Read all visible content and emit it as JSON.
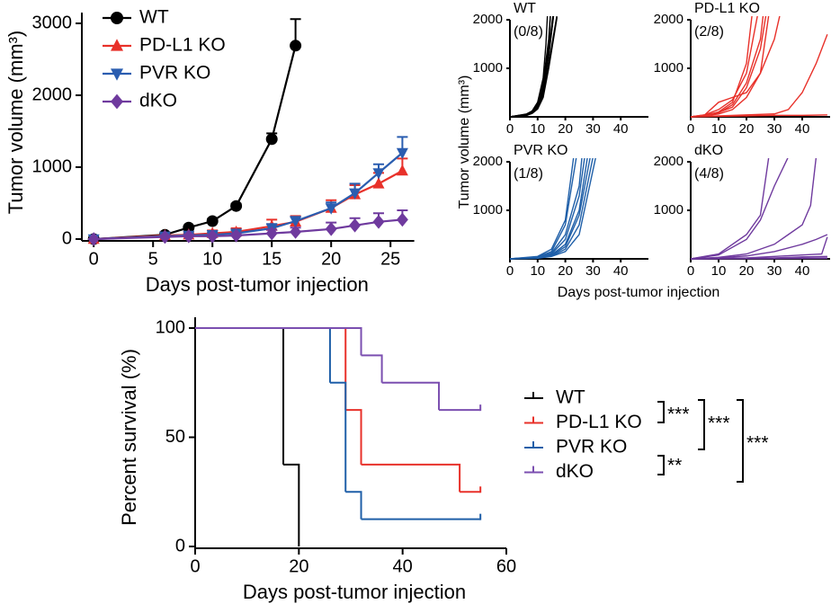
{
  "chart_data": [
    {
      "type": "line",
      "xlabel": "Days post-tumor injection",
      "ylabel": "Tumor volume (mm³)",
      "xlim": [
        -1,
        27
      ],
      "ylim": [
        0,
        3000
      ],
      "xticks": [
        0,
        5,
        10,
        15,
        20,
        25
      ],
      "yticks": [
        0,
        1000,
        2000,
        3000
      ],
      "legend": "upper left",
      "x": [
        0,
        6,
        8,
        10,
        12,
        15,
        17,
        20,
        22,
        24,
        26
      ],
      "series": [
        {
          "name": "WT",
          "color": "#000000",
          "marker": "circle",
          "values": [
            0,
            60,
            160,
            250,
            460,
            1390,
            2690,
            null,
            null,
            null,
            null
          ],
          "errors": [
            0,
            20,
            20,
            30,
            30,
            80,
            370,
            null,
            null,
            null,
            null
          ]
        },
        {
          "name": "PD-L1 KO",
          "color": "#e8312a",
          "marker": "triangle-up",
          "values": [
            0,
            50,
            60,
            80,
            100,
            180,
            240,
            430,
            620,
            770,
            950
          ],
          "errors": [
            0,
            20,
            30,
            40,
            50,
            90,
            80,
            110,
            130,
            150,
            170
          ]
        },
        {
          "name": "PVR KO",
          "color": "#2a5db0",
          "marker": "triangle-down",
          "values": [
            0,
            40,
            50,
            60,
            80,
            150,
            250,
            430,
            640,
            920,
            1200
          ],
          "errors": [
            0,
            20,
            20,
            30,
            40,
            60,
            60,
            80,
            130,
            120,
            220
          ]
        },
        {
          "name": "dKO",
          "color": "#6f3a9e",
          "marker": "diamond",
          "values": [
            0,
            30,
            40,
            40,
            50,
            80,
            100,
            140,
            190,
            240,
            270
          ],
          "errors": [
            0,
            20,
            20,
            20,
            30,
            50,
            60,
            90,
            100,
            120,
            130
          ]
        }
      ]
    },
    {
      "type": "line",
      "title": "WT",
      "title_color": "#000000",
      "annotation": "(0/8)",
      "color": "#000000",
      "xlim": [
        0,
        50
      ],
      "ylim": [
        0,
        2000
      ],
      "xticks": [
        0,
        10,
        20,
        30,
        40
      ],
      "yticks": [
        1000,
        2000
      ],
      "series": [
        {
          "x": [
            0,
            6,
            8,
            10,
            12,
            14,
            16
          ],
          "values": [
            0,
            40,
            90,
            200,
            500,
            1300,
            2200
          ]
        },
        {
          "x": [
            0,
            6,
            8,
            10,
            12,
            14,
            15
          ],
          "values": [
            0,
            50,
            100,
            250,
            700,
            1600,
            2400
          ]
        },
        {
          "x": [
            0,
            6,
            8,
            10,
            12,
            14,
            17
          ],
          "values": [
            0,
            30,
            80,
            180,
            450,
            1100,
            2100
          ]
        },
        {
          "x": [
            0,
            6,
            8,
            10,
            12,
            13,
            14
          ],
          "values": [
            0,
            60,
            120,
            300,
            800,
            1500,
            2600
          ]
        },
        {
          "x": [
            0,
            6,
            8,
            10,
            12,
            14,
            16
          ],
          "values": [
            0,
            40,
            90,
            220,
            600,
            1400,
            2300
          ]
        },
        {
          "x": [
            0,
            6,
            8,
            10,
            12,
            14,
            15
          ],
          "values": [
            0,
            50,
            110,
            260,
            650,
            1500,
            2500
          ]
        },
        {
          "x": [
            0,
            6,
            8,
            10,
            12,
            14,
            17
          ],
          "values": [
            0,
            30,
            70,
            160,
            400,
            1000,
            2050
          ]
        },
        {
          "x": [
            0,
            6,
            8,
            10,
            12,
            14,
            16
          ],
          "values": [
            0,
            45,
            100,
            240,
            550,
            1250,
            2200
          ]
        }
      ]
    },
    {
      "type": "line",
      "title": "PD-L1 KO",
      "title_color": "#e8312a",
      "annotation": "(2/8)",
      "color": "#e8312a",
      "xlim": [
        0,
        50
      ],
      "ylim": [
        0,
        2000
      ],
      "xticks": [
        0,
        10,
        20,
        30,
        40
      ],
      "yticks": [
        1000,
        2000
      ],
      "series": [
        {
          "x": [
            0,
            5,
            10,
            15,
            20,
            22
          ],
          "values": [
            0,
            30,
            100,
            300,
            1100,
            2100
          ]
        },
        {
          "x": [
            0,
            5,
            10,
            15,
            20,
            24
          ],
          "values": [
            0,
            40,
            150,
            350,
            900,
            2100
          ]
        },
        {
          "x": [
            0,
            5,
            10,
            15,
            20,
            25,
            26
          ],
          "values": [
            0,
            20,
            80,
            250,
            700,
            1600,
            2100
          ]
        },
        {
          "x": [
            0,
            5,
            10,
            15,
            20,
            25,
            27
          ],
          "values": [
            0,
            30,
            90,
            200,
            600,
            1400,
            2100
          ]
        },
        {
          "x": [
            0,
            5,
            10,
            15,
            20,
            25,
            30,
            32
          ],
          "values": [
            0,
            20,
            60,
            150,
            400,
            900,
            1600,
            2100
          ]
        },
        {
          "x": [
            0,
            5,
            10,
            15,
            20,
            25,
            28
          ],
          "values": [
            0,
            40,
            300,
            400,
            500,
            900,
            2100
          ]
        },
        {
          "x": [
            0,
            10,
            20,
            30,
            35,
            40,
            45,
            49
          ],
          "values": [
            0,
            20,
            40,
            60,
            150,
            500,
            1100,
            1700
          ]
        },
        {
          "x": [
            0,
            10,
            20,
            30,
            40,
            49
          ],
          "values": [
            0,
            10,
            20,
            30,
            30,
            40
          ]
        }
      ]
    },
    {
      "type": "line",
      "title": "PVR KO",
      "title_color": "#2a4fb0",
      "annotation": "(1/8)",
      "color": "#1f5fa8",
      "xlim": [
        0,
        50
      ],
      "ylim": [
        0,
        2000
      ],
      "xticks": [
        0,
        10,
        20,
        30,
        40
      ],
      "yticks": [
        1000,
        2000
      ],
      "series": [
        {
          "x": [
            0,
            10,
            15,
            20,
            23
          ],
          "values": [
            0,
            50,
            200,
            800,
            2100
          ]
        },
        {
          "x": [
            0,
            10,
            15,
            20,
            24
          ],
          "values": [
            0,
            40,
            150,
            700,
            2100
          ]
        },
        {
          "x": [
            0,
            10,
            15,
            20,
            25,
            26
          ],
          "values": [
            0,
            30,
            120,
            500,
            1500,
            2100
          ]
        },
        {
          "x": [
            0,
            10,
            15,
            20,
            25,
            27
          ],
          "values": [
            0,
            30,
            100,
            400,
            1300,
            2100
          ]
        },
        {
          "x": [
            0,
            10,
            15,
            20,
            25,
            28
          ],
          "values": [
            0,
            20,
            80,
            300,
            1000,
            2100
          ]
        },
        {
          "x": [
            0,
            10,
            15,
            20,
            25,
            29
          ],
          "values": [
            0,
            20,
            70,
            250,
            900,
            2100
          ]
        },
        {
          "x": [
            0,
            10,
            15,
            20,
            25,
            30
          ],
          "values": [
            0,
            20,
            60,
            200,
            700,
            2100
          ]
        },
        {
          "x": [
            0,
            10,
            15,
            20,
            25,
            31
          ],
          "values": [
            0,
            10,
            50,
            150,
            500,
            2100
          ]
        }
      ]
    },
    {
      "type": "line",
      "title": "dKO",
      "title_color": "#6f3a9e",
      "annotation": "(4/8)",
      "color": "#6f3a9e",
      "xlim": [
        0,
        50
      ],
      "ylim": [
        0,
        2000
      ],
      "xticks": [
        0,
        10,
        20,
        30,
        40
      ],
      "yticks": [
        1000,
        2000
      ],
      "series": [
        {
          "x": [
            0,
            10,
            20,
            25,
            28
          ],
          "values": [
            0,
            100,
            500,
            900,
            2100
          ]
        },
        {
          "x": [
            0,
            10,
            20,
            25,
            30,
            35
          ],
          "values": [
            0,
            80,
            400,
            800,
            1500,
            2100
          ]
        },
        {
          "x": [
            0,
            10,
            20,
            30,
            35,
            40,
            43,
            45
          ],
          "values": [
            0,
            30,
            100,
            300,
            500,
            700,
            1100,
            2100
          ]
        },
        {
          "x": [
            0,
            10,
            20,
            30,
            40,
            45,
            49
          ],
          "values": [
            0,
            20,
            60,
            150,
            300,
            400,
            500
          ]
        },
        {
          "x": [
            0,
            20,
            30,
            40,
            47,
            49
          ],
          "values": [
            0,
            20,
            50,
            80,
            100,
            450
          ]
        },
        {
          "x": [
            0,
            20,
            30,
            40,
            49
          ],
          "values": [
            0,
            10,
            20,
            40,
            50
          ]
        },
        {
          "x": [
            0,
            30,
            49
          ],
          "values": [
            0,
            10,
            20
          ]
        },
        {
          "x": [
            0,
            49
          ],
          "values": [
            0,
            10
          ]
        }
      ]
    },
    {
      "type": "step",
      "xlabel": "Days post-tumor injection",
      "ylabel": "Percent survival (%)",
      "xlim": [
        0,
        60
      ],
      "ylim": [
        0,
        100
      ],
      "xticks": [
        0,
        20,
        40,
        60
      ],
      "yticks": [
        0,
        50,
        100
      ],
      "legend": "right",
      "series": [
        {
          "name": "WT",
          "color": "#000000",
          "x": [
            0,
            17,
            20
          ],
          "values": [
            100,
            37.5,
            0
          ]
        },
        {
          "name": "PD-L1 KO",
          "color": "#e8312a",
          "x": [
            0,
            29,
            32,
            51,
            55
          ],
          "values": [
            100,
            62.5,
            37.5,
            25,
            25
          ]
        },
        {
          "name": "PVR KO",
          "color": "#1f5fa8",
          "x": [
            0,
            26,
            29,
            32,
            55
          ],
          "values": [
            100,
            75,
            25,
            12.5,
            12.5
          ]
        },
        {
          "name": "dKO",
          "color": "#7b4fb0",
          "x": [
            0,
            32,
            36,
            47,
            55
          ],
          "values": [
            100,
            87.5,
            75,
            62.5,
            62.5
          ]
        }
      ],
      "annotations": [
        "***",
        "***",
        "**",
        "***"
      ]
    }
  ],
  "small_multiples": {
    "xlabel": "Days post-tumor injection",
    "ylabel": "Tumor volume (mm³)"
  }
}
